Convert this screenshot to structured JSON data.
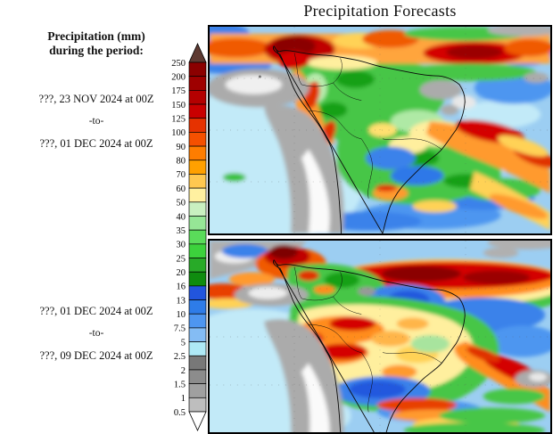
{
  "title": "Precipitation Forecasts",
  "sidebar": {
    "heading_line1": "Precipitation (mm)",
    "heading_line2": "during the period:",
    "periods": [
      {
        "from": "???, 23 NOV 2024 at 00Z",
        "separator": "-to-",
        "to": "???, 01 DEC 2024 at 00Z"
      },
      {
        "from": "???, 01 DEC 2024 at 00Z",
        "separator": "-to-",
        "to": "???, 09 DEC 2024 at 00Z"
      }
    ]
  },
  "colorbar": {
    "boundary_labels": [
      "250",
      "200",
      "175",
      "150",
      "125",
      "100",
      "90",
      "80",
      "70",
      "60",
      "50",
      "40",
      "35",
      "30",
      "25",
      "20",
      "16",
      "13",
      "10",
      "7.5",
      "5",
      "2.5",
      "2",
      "1.5",
      "1",
      "0.5"
    ],
    "segment_colors": [
      "#8B0000",
      "#9E0000",
      "#B40000",
      "#C90000",
      "#E63200",
      "#F55000",
      "#FF7D00",
      "#FFA000",
      "#FFC850",
      "#FFF0A0",
      "#C9F0C0",
      "#96E696",
      "#5ADC5A",
      "#3CD23C",
      "#28AA28",
      "#0F8C0F",
      "#2255DD",
      "#2E7CE8",
      "#4E96F0",
      "#84BCF4",
      "#AEE9F6",
      "#787878",
      "#8C8C8C",
      "#A0A0A0",
      "#BEBEBE"
    ],
    "above_max_color": "#5E3A32",
    "below_min_color": "#FFFFFF"
  }
}
